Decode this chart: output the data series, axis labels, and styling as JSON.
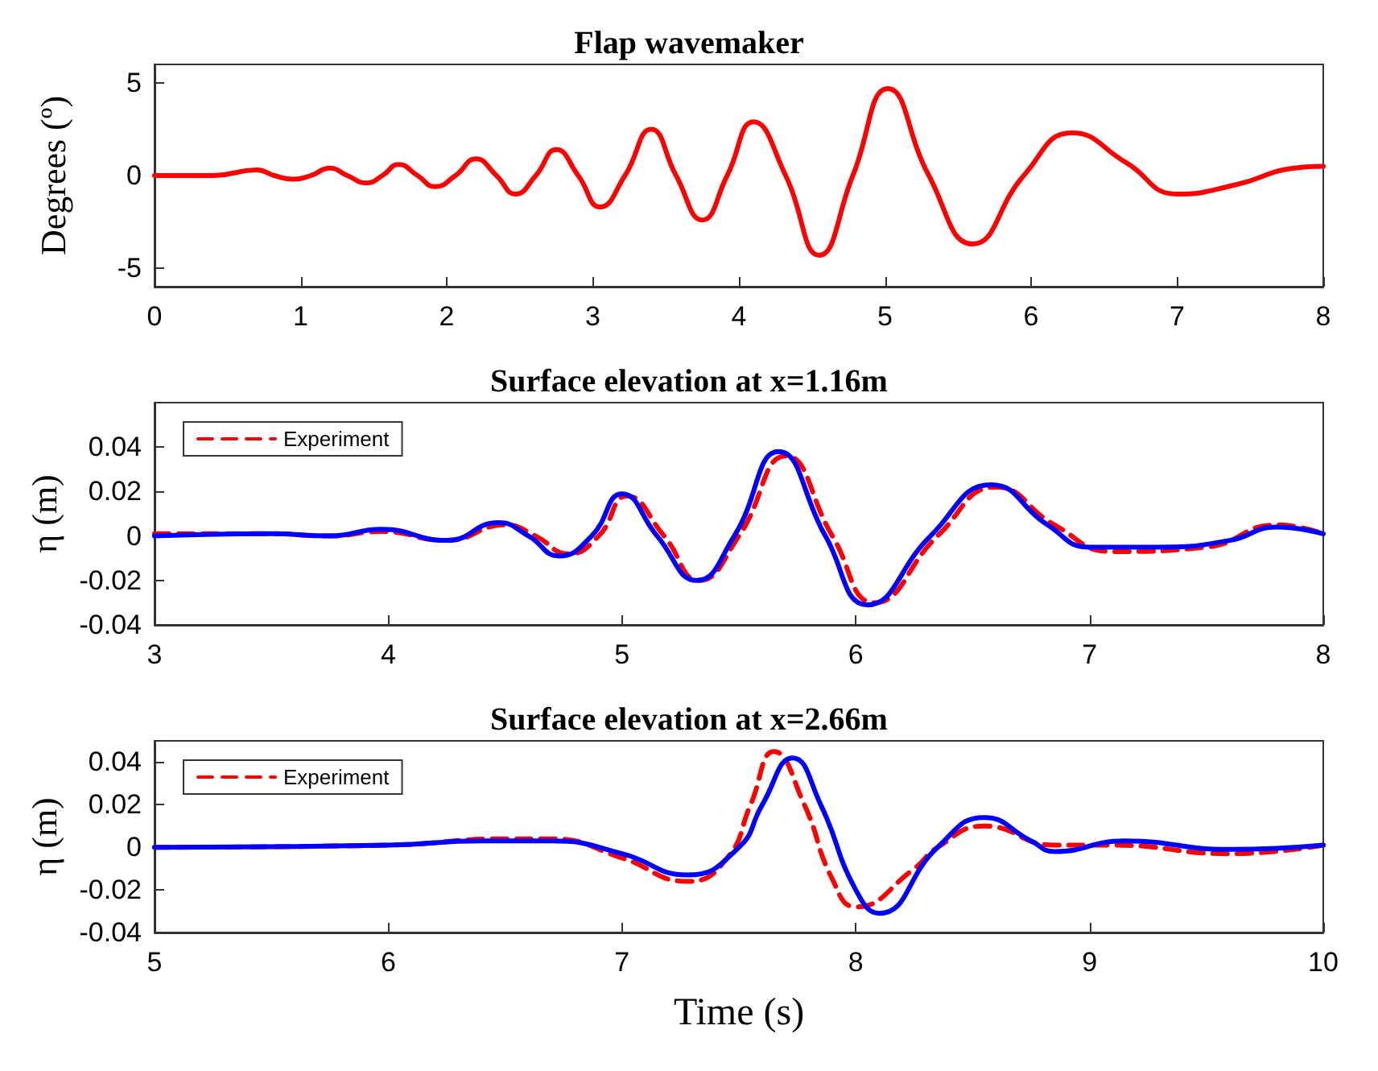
{
  "chart_data": [
    {
      "type": "line",
      "title": "Flap wavemaker",
      "ylabel": "Degrees (º)",
      "xlim": [
        0,
        8
      ],
      "xticks": [
        0,
        1,
        2,
        3,
        4,
        5,
        6,
        7,
        8
      ],
      "ylim": [
        -6,
        6
      ],
      "yticks": [
        -5,
        0,
        5
      ],
      "grid": false,
      "legend": false,
      "marker": "none",
      "series": [
        {
          "color": "#ff0000",
          "line_style": "solid",
          "x": [
            0,
            0.4,
            0.7,
            0.82,
            0.95,
            1.07,
            1.2,
            1.32,
            1.45,
            1.56,
            1.67,
            1.8,
            1.92,
            2.06,
            2.2,
            2.34,
            2.47,
            2.61,
            2.75,
            2.9,
            3.05,
            3.22,
            3.4,
            3.57,
            3.75,
            3.92,
            4.1,
            4.32,
            4.55,
            4.78,
            5.02,
            5.3,
            5.6,
            5.95,
            6.28,
            6.65,
            7.0,
            7.4,
            7.8,
            8
          ],
          "values": [
            0,
            0,
            0.3,
            0,
            -0.2,
            0,
            0.4,
            0,
            -0.4,
            0,
            0.6,
            0,
            -0.6,
            0,
            0.9,
            0,
            -1.0,
            0,
            1.4,
            0,
            -1.7,
            0,
            2.5,
            0,
            -2.4,
            0,
            2.9,
            0,
            -4.3,
            0,
            4.7,
            0,
            -3.7,
            0,
            2.3,
            0.7,
            -1.0,
            -0.5,
            0.4,
            0.5
          ]
        }
      ]
    },
    {
      "type": "line",
      "title": "Surface elevation at x=1.16m",
      "ylabel": "η (m)",
      "xlim": [
        3,
        8
      ],
      "xticks": [
        3,
        4,
        5,
        6,
        7,
        8
      ],
      "ylim": [
        -0.04,
        0.06
      ],
      "yticks": [
        -0.04,
        -0.02,
        0,
        0.02,
        0.04
      ],
      "grid": false,
      "legend": "top left",
      "marker": "none",
      "series": [
        {
          "name": "Experiment",
          "color": "#ff0000",
          "line_style": "dashed",
          "x": [
            3,
            3.5,
            3.75,
            3.97,
            4.25,
            4.5,
            4.63,
            4.77,
            4.9,
            5.02,
            5.18,
            5.33,
            5.5,
            5.7,
            5.9,
            6.08,
            6.35,
            6.6,
            6.85,
            7.1,
            7.5,
            7.8,
            8
          ],
          "values": [
            0.001,
            0.001,
            0,
            0.002,
            -0.002,
            0.005,
            0,
            -0.008,
            0,
            0.018,
            0,
            -0.02,
            0,
            0.036,
            0,
            -0.03,
            0,
            0.022,
            0.005,
            -0.007,
            -0.005,
            0.005,
            0.001
          ]
        },
        {
          "color": "#0000ff",
          "line_style": "solid",
          "x": [
            3,
            3.5,
            3.75,
            3.97,
            4.25,
            4.47,
            4.6,
            4.73,
            4.87,
            5.0,
            5.15,
            5.32,
            5.48,
            5.67,
            5.87,
            6.05,
            6.32,
            6.58,
            6.82,
            7.0,
            7.3,
            7.6,
            7.8,
            8
          ],
          "values": [
            0,
            0.001,
            0,
            0.003,
            -0.002,
            0.006,
            0,
            -0.009,
            0,
            0.019,
            0,
            -0.02,
            0,
            0.038,
            0,
            -0.031,
            0,
            0.023,
            0.005,
            -0.005,
            -0.005,
            -0.002,
            0.004,
            0.001
          ]
        }
      ]
    },
    {
      "type": "line",
      "title": "Surface elevation at x=2.66m",
      "xlabel": "Time (s)",
      "ylabel": "η (m)",
      "xlim": [
        5,
        10
      ],
      "xticks": [
        5,
        6,
        7,
        8,
        9,
        10
      ],
      "ylim": [
        -0.04,
        0.05
      ],
      "yticks": [
        -0.04,
        -0.02,
        0,
        0.02,
        0.04
      ],
      "grid": false,
      "legend": "top left",
      "marker": "none",
      "series": [
        {
          "name": "Experiment",
          "color": "#ff0000",
          "line_style": "dashed",
          "x": [
            5,
            6,
            6.5,
            6.7,
            7.0,
            7.28,
            7.45,
            7.55,
            7.65,
            7.78,
            7.9,
            8.0,
            8.25,
            8.35,
            8.55,
            8.85,
            9.1,
            9.6,
            10
          ],
          "values": [
            0,
            0.001,
            0.004,
            0.004,
            -0.005,
            -0.016,
            -0.005,
            0.02,
            0.045,
            0.02,
            -0.015,
            -0.028,
            -0.01,
            0,
            0.01,
            0.001,
            0.001,
            -0.003,
            0.001
          ]
        },
        {
          "color": "#0000ff",
          "line_style": "solid",
          "x": [
            5,
            6,
            6.4,
            6.7,
            7.0,
            7.28,
            7.5,
            7.6,
            7.73,
            7.85,
            8.0,
            8.1,
            8.35,
            8.55,
            8.75,
            8.85,
            9.15,
            9.6,
            10
          ],
          "values": [
            0,
            0.001,
            0.003,
            0.003,
            -0.003,
            -0.013,
            0,
            0.02,
            0.042,
            0.02,
            -0.02,
            -0.031,
            0,
            0.014,
            0.003,
            -0.002,
            0.003,
            -0.001,
            0.001
          ]
        }
      ]
    }
  ]
}
